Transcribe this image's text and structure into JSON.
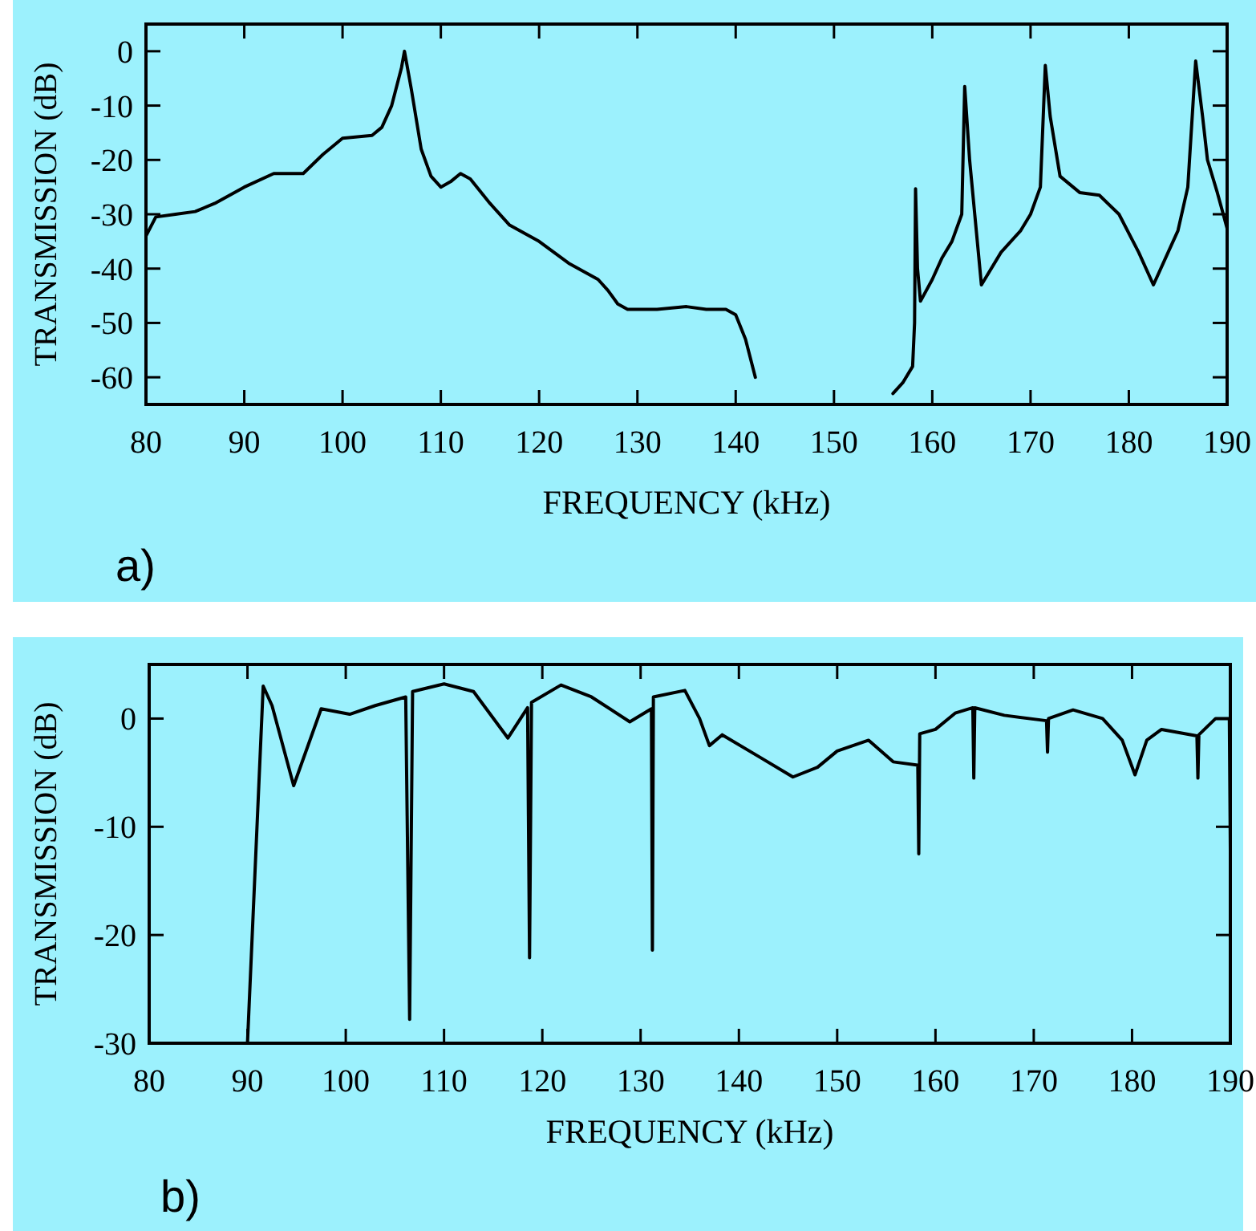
{
  "chart_data": [
    {
      "type": "line",
      "xlabel": "FREQUENCY (kHz)",
      "ylabel": "TRANSMISSION (dB)",
      "annotations": [
        "a)"
      ],
      "xlim": [
        80,
        190
      ],
      "ylim": [
        -65,
        5
      ],
      "xticks": [
        80,
        90,
        100,
        110,
        120,
        130,
        140,
        150,
        160,
        170,
        180,
        190
      ],
      "yticks": [
        0,
        -10,
        -20,
        -30,
        -40,
        -50,
        -60
      ],
      "grid": false,
      "marker": "none",
      "line_style": "solid",
      "series": [
        {
          "color": "#000000",
          "x": [
            80,
            81,
            83,
            85,
            87,
            90,
            93,
            96,
            98,
            100,
            103,
            104,
            105,
            106,
            106.3,
            107,
            108,
            109,
            110,
            111,
            112,
            113,
            115,
            117,
            120,
            123,
            126,
            127,
            128,
            129,
            132,
            135,
            137,
            139,
            140,
            141,
            142,
            142.7,
            150,
            155.2,
            156,
            157,
            158,
            158.2,
            158.3,
            158.5,
            158.8,
            160,
            161,
            162,
            163,
            163.3,
            163.8,
            165,
            167,
            169,
            170,
            171,
            171.5,
            172,
            173,
            175,
            177,
            179,
            181,
            182.5,
            184,
            185,
            186,
            186.8,
            187.5,
            188,
            189,
            190
          ],
          "values": [
            -34,
            -30.5,
            -30,
            -29.5,
            -28,
            -25,
            -22.5,
            -22.5,
            -19,
            -16,
            -15.5,
            -14,
            -10,
            -3,
            0,
            -7,
            -18,
            -23,
            -25,
            -24,
            -22.5,
            -23.5,
            -28,
            -32,
            -35,
            -39,
            -42,
            -44,
            -46.5,
            -47.5,
            -47.5,
            -47,
            -47.5,
            -47.5,
            -48.5,
            -53,
            -60,
            null,
            null,
            null,
            -63,
            -61,
            -58,
            -50,
            -25.3,
            -40,
            -46,
            -42,
            -38,
            -35,
            -30,
            -6.5,
            -20,
            -43,
            -37,
            -33,
            -30,
            -25,
            -2.6,
            -12,
            -23,
            -26,
            -26.5,
            -30,
            -37,
            -43,
            -37,
            -33,
            -25,
            -1.8,
            -12,
            -20,
            -26,
            -32.6
          ]
        }
      ]
    },
    {
      "type": "line",
      "xlabel": "FREQUENCY (kHz)",
      "ylabel": "TRANSMISSION (dB)",
      "annotations": [
        "b)"
      ],
      "xlim": [
        80,
        190
      ],
      "ylim": [
        -30,
        5
      ],
      "xticks": [
        80,
        90,
        100,
        110,
        120,
        130,
        140,
        150,
        160,
        170,
        180,
        190
      ],
      "yticks": [
        0,
        -10,
        -20,
        -30
      ],
      "grid": false,
      "marker": "none",
      "line_style": "solid",
      "series": [
        {
          "color": "#000000",
          "x": [
            90,
            91.6,
            92.5,
            94.7,
            97.5,
            100.4,
            103,
            106.1,
            106.5,
            106.8,
            110,
            113,
            116.5,
            118.5,
            118.7,
            118.9,
            121.9,
            125,
            128.9,
            131.1,
            131.2,
            131.3,
            134.5,
            136,
            137,
            138.3,
            142,
            145.5,
            148,
            150,
            153.2,
            155.7,
            158.2,
            158.3,
            158.4,
            160,
            162,
            163.8,
            163.9,
            164,
            167,
            171.3,
            171.4,
            171.5,
            174,
            177,
            179,
            180.3,
            181.5,
            183,
            186.6,
            186.7,
            186.8,
            188.5,
            189.9,
            190
          ],
          "values": [
            -30,
            3,
            1.2,
            -6.2,
            0.9,
            0.4,
            1.2,
            2,
            -27.8,
            2.5,
            3.2,
            2.5,
            -1.8,
            1,
            -22.1,
            1.5,
            3.1,
            2,
            -0.3,
            0.9,
            -21.4,
            2,
            2.6,
            0,
            -2.5,
            -1.5,
            -3.5,
            -5.4,
            -4.5,
            -3,
            -2,
            -4,
            -4.3,
            -12.5,
            -1.4,
            -1,
            0.5,
            1,
            -5.5,
            1,
            0.3,
            -0.2,
            -3.1,
            0,
            0.8,
            0,
            -2,
            -5.2,
            -2,
            -1,
            -1.6,
            -5.5,
            -1.5,
            0,
            0,
            -12.2
          ]
        }
      ]
    }
  ]
}
